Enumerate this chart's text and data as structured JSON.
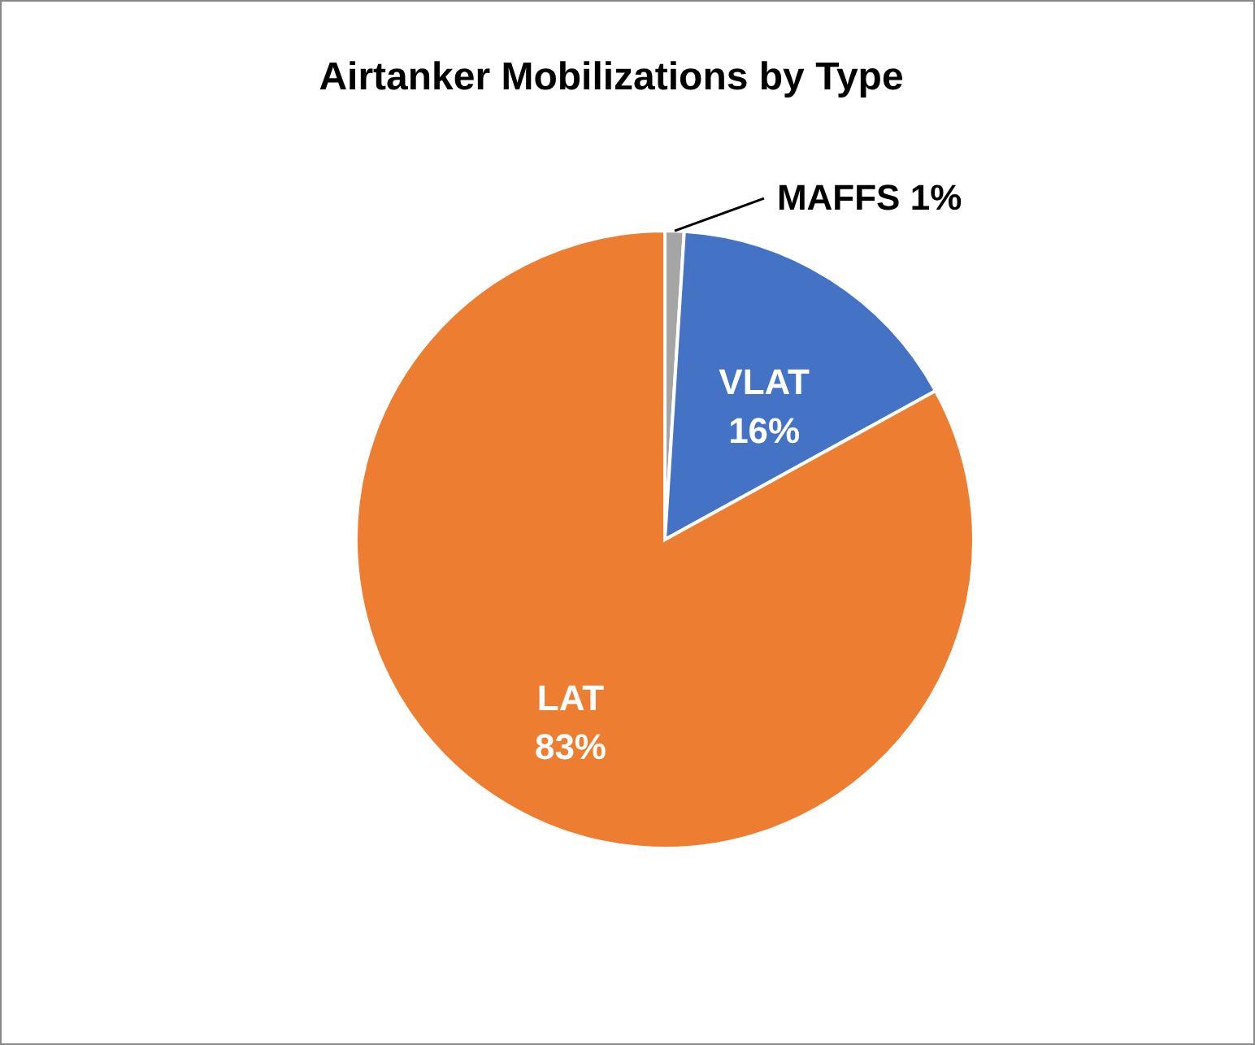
{
  "chart_data": {
    "type": "pie",
    "title": "Airtanker Mobilizations by Type",
    "categories": [
      "MAFFS",
      "VLAT",
      "LAT"
    ],
    "values": [
      1,
      16,
      83
    ],
    "colors": [
      "#a5a5a5",
      "#4472c4",
      "#ed7d31"
    ],
    "value_labels": [
      "1%",
      "16%",
      "83%"
    ]
  }
}
